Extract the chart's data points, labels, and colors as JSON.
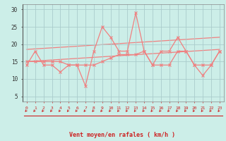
{
  "xlabel": "Vent moyen/en rafales ( km/h )",
  "bg_color": "#cceee8",
  "grid_color": "#aacccc",
  "line_color": "#f08080",
  "arrow_color": "#cc2222",
  "x_ticks": [
    0,
    1,
    2,
    3,
    4,
    5,
    6,
    7,
    8,
    9,
    10,
    11,
    12,
    13,
    14,
    15,
    16,
    17,
    18,
    19,
    20,
    21,
    22,
    23
  ],
  "y_ticks": [
    5,
    10,
    15,
    20,
    25,
    30
  ],
  "ylim": [
    3.5,
    31.5
  ],
  "xlim": [
    -0.5,
    23.5
  ],
  "mean_values": [
    14,
    18,
    14,
    14,
    12,
    14,
    14,
    8,
    18,
    25,
    22,
    18,
    18,
    29,
    18,
    14,
    18,
    18,
    22,
    18,
    14,
    11,
    14,
    18
  ],
  "gust_values": [
    15,
    15,
    15,
    15,
    15,
    14,
    14,
    14,
    14,
    15,
    16,
    17,
    17,
    17,
    18,
    14,
    14,
    14,
    18,
    18,
    14,
    14,
    14,
    18
  ],
  "trend1_x": [
    0,
    23
  ],
  "trend1_y": [
    18.5,
    22.0
  ],
  "trend2_x": [
    0,
    23
  ],
  "trend2_y": [
    15.0,
    18.5
  ]
}
